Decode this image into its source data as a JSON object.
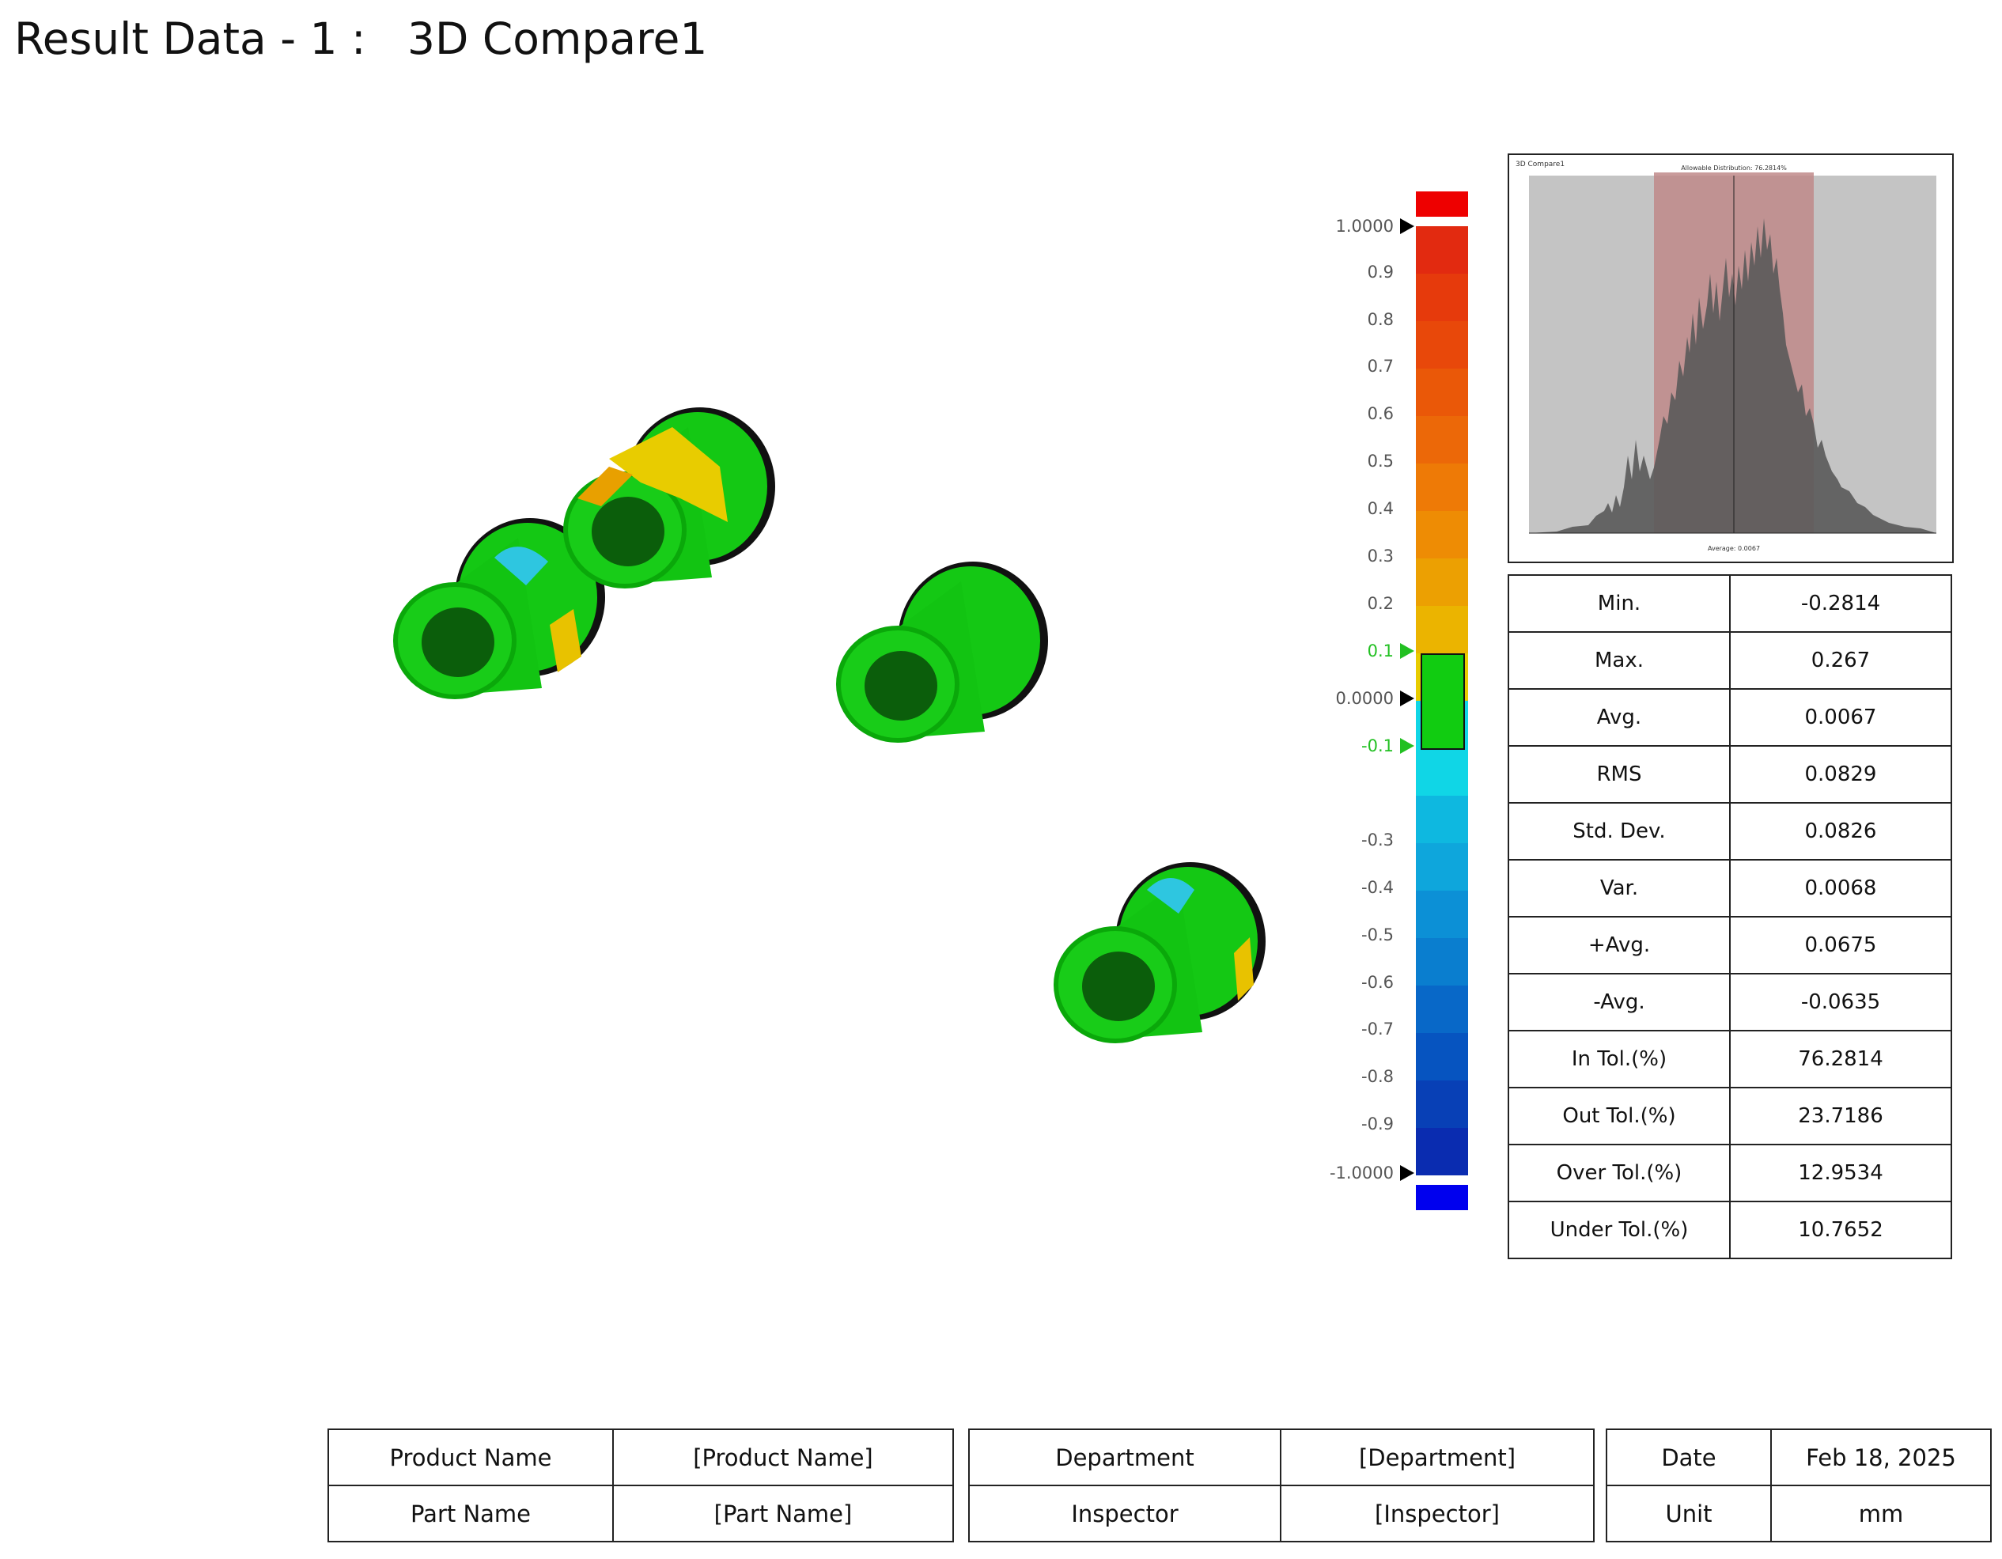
{
  "title": "Result Data - 1 :   3D Compare1",
  "colorbar": {
    "labels": [
      "1.0000",
      "0.9",
      "0.8",
      "0.7",
      "0.6",
      "0.5",
      "0.4",
      "0.3",
      "0.2",
      "0.1",
      "0.0000",
      "-0.1",
      "-0.3",
      "-0.4",
      "-0.5",
      "-0.6",
      "-0.7",
      "-0.8",
      "-0.9",
      "-1.0000"
    ],
    "top_color": "#ee0000",
    "bottom_color": "#0000ee",
    "tolerance_color": "#11cc11"
  },
  "histogram": {
    "header": "3D Compare1",
    "subtitle": "Allowable Distribution: 76.2814%",
    "footer": "Average: 0.0067",
    "bar_color": "#5a5a5a",
    "band_color": "#c08a8a"
  },
  "stats": [
    {
      "label": "Min.",
      "value": "-0.2814"
    },
    {
      "label": "Max.",
      "value": "0.267"
    },
    {
      "label": "Avg.",
      "value": "0.0067"
    },
    {
      "label": "RMS",
      "value": "0.0829"
    },
    {
      "label": "Std. Dev.",
      "value": "0.0826"
    },
    {
      "label": "Var.",
      "value": "0.0068"
    },
    {
      "label": "+Avg.",
      "value": "0.0675"
    },
    {
      "label": "-Avg.",
      "value": "-0.0635"
    },
    {
      "label": "In Tol.(%)",
      "value": "76.2814"
    },
    {
      "label": "Out Tol.(%)",
      "value": "23.7186"
    },
    {
      "label": "Over Tol.(%)",
      "value": "12.9534"
    },
    {
      "label": "Under Tol.(%)",
      "value": "10.7652"
    }
  ],
  "info": {
    "product_name_label": "Product Name",
    "product_name_value": "[Product Name]",
    "part_name_label": "Part Name",
    "part_name_value": "[Part Name]",
    "department_label": "Department",
    "department_value": "[Department]",
    "inspector_label": "Inspector",
    "inspector_value": "[Inspector]",
    "date_label": "Date",
    "date_value": "Feb 18, 2025",
    "unit_label": "Unit",
    "unit_value": "mm"
  }
}
